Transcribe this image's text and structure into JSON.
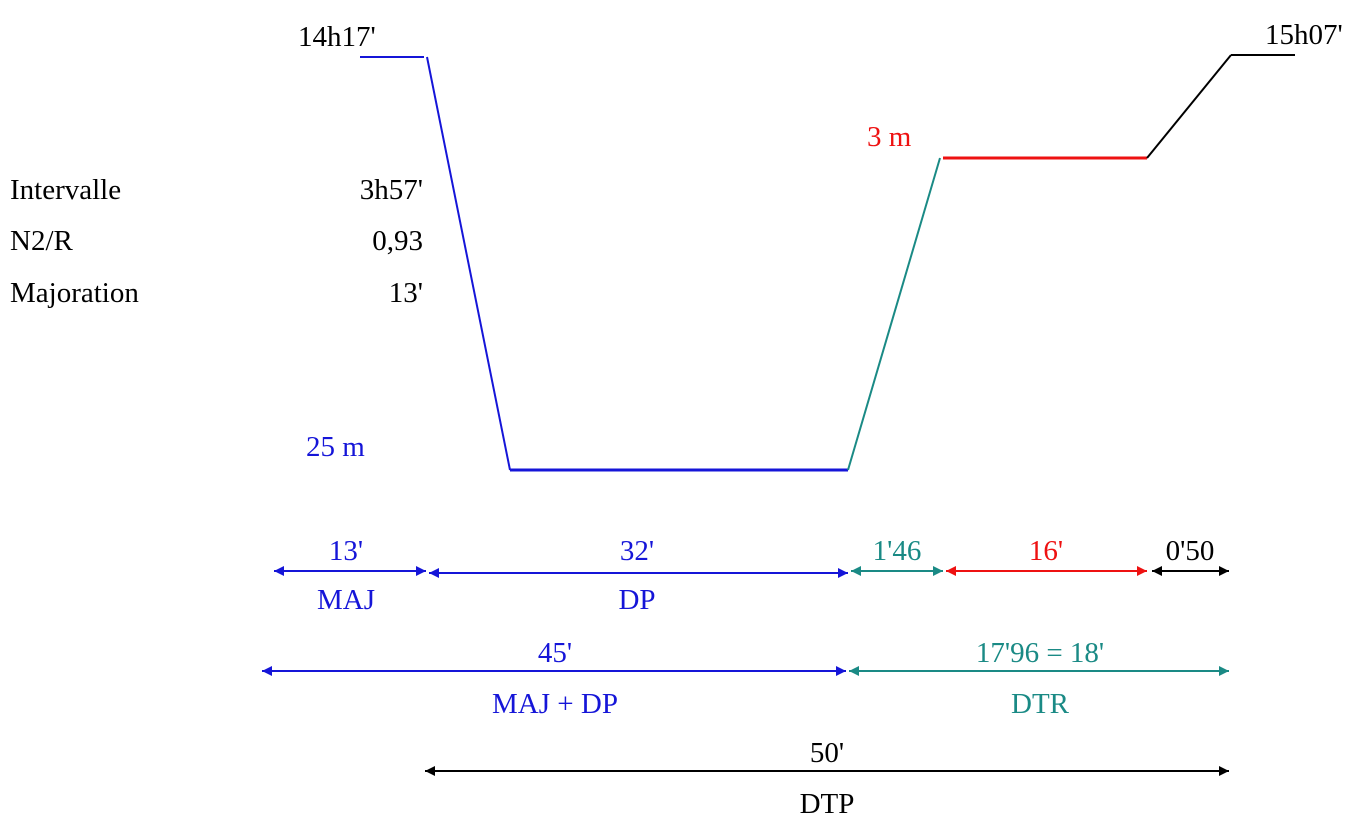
{
  "times": {
    "start": "14h17'",
    "end": "15h07'"
  },
  "info": {
    "rows": [
      {
        "label": "Intervalle",
        "value": "3h57'"
      },
      {
        "label": "N2/R",
        "value": "0,93"
      },
      {
        "label": "Majoration",
        "value": "13'"
      }
    ]
  },
  "depths": {
    "bottom": "25 m",
    "stop": "3 m"
  },
  "segments": {
    "maj": {
      "duration": "13'",
      "label": "MAJ"
    },
    "dp": {
      "duration": "32'",
      "label": "DP"
    },
    "ascent1": {
      "duration": "1'46"
    },
    "stop": {
      "duration": "16'"
    },
    "ascent2": {
      "duration": "0'50"
    }
  },
  "totals": {
    "majdp": {
      "duration": "45'",
      "label": "MAJ + DP"
    },
    "dtr": {
      "duration": "17'96 = 18'",
      "label": "DTR"
    },
    "dtp": {
      "duration": "50'",
      "label": "DTP"
    }
  },
  "colors": {
    "blue": "#1515d8",
    "teal": "#1a8a85",
    "red": "#ee1111",
    "black": "#000000"
  }
}
